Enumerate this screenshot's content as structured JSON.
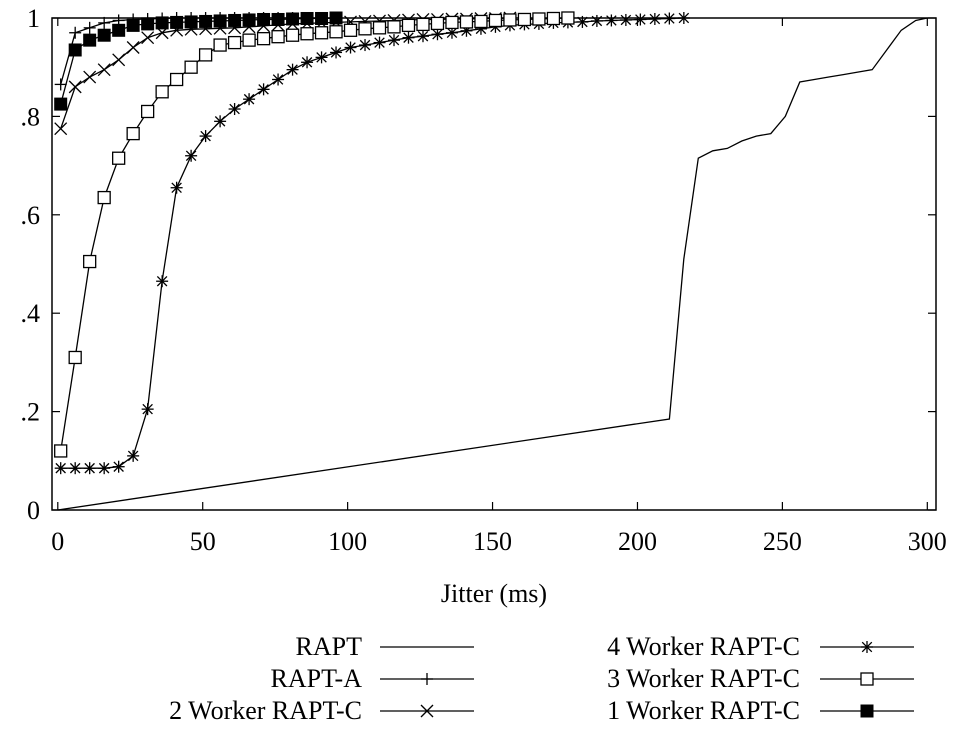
{
  "chart_data": {
    "type": "line",
    "title": "",
    "xlabel": "Jitter (ms)",
    "ylabel": "",
    "xlim": [
      -2,
      303
    ],
    "ylim": [
      0,
      1
    ],
    "grid": false,
    "legend_position": "bottom",
    "x_ticks": [
      0,
      50,
      100,
      150,
      200,
      250,
      300
    ],
    "y_ticks": [
      0,
      0.2,
      0.4,
      0.6,
      0.8,
      1
    ],
    "y_tick_labels": [
      "0",
      ".2",
      ".4",
      ".6",
      ".8",
      "1"
    ],
    "series": [
      {
        "name": "RAPT",
        "marker": "none",
        "x": [
          0,
          211,
          216,
          221,
          226,
          231,
          236,
          241,
          246,
          251,
          256,
          261,
          266,
          271,
          276,
          281,
          286,
          291,
          296,
          300
        ],
        "y": [
          0,
          0.185,
          0.51,
          0.715,
          0.73,
          0.735,
          0.75,
          0.76,
          0.765,
          0.8,
          0.87,
          0.875,
          0.88,
          0.885,
          0.89,
          0.895,
          0.935,
          0.975,
          0.995,
          1.0
        ]
      },
      {
        "name": "RAPT-A",
        "marker": "plus",
        "x": [
          1,
          6,
          11,
          16,
          21,
          26,
          31,
          36,
          41,
          46,
          51,
          56,
          61,
          66,
          71,
          76,
          81,
          86,
          91,
          96
        ],
        "y": [
          0.865,
          0.97,
          0.98,
          0.99,
          0.995,
          0.997,
          0.998,
          0.999,
          1,
          1,
          1,
          1,
          1,
          1,
          1,
          1,
          1,
          1,
          1,
          1
        ]
      },
      {
        "name": "2 Worker RAPT-C",
        "marker": "x",
        "x": [
          1,
          6,
          11,
          16,
          21,
          26,
          31,
          36,
          41,
          46,
          51,
          56,
          61,
          66,
          71,
          76,
          81,
          86,
          91,
          96,
          101,
          106,
          111,
          116,
          121,
          126,
          131,
          136,
          141,
          146,
          151,
          156
        ],
        "y": [
          0.775,
          0.86,
          0.88,
          0.895,
          0.915,
          0.94,
          0.96,
          0.97,
          0.975,
          0.977,
          0.978,
          0.979,
          0.98,
          0.982,
          0.984,
          0.986,
          0.988,
          0.989,
          0.99,
          0.991,
          0.992,
          0.993,
          0.994,
          0.995,
          0.996,
          0.997,
          0.997,
          0.998,
          0.998,
          0.999,
          0.999,
          1.0
        ]
      },
      {
        "name": "4 Worker RAPT-C",
        "marker": "star",
        "x": [
          1,
          6,
          11,
          16,
          21,
          26,
          31,
          36,
          41,
          46,
          51,
          56,
          61,
          66,
          71,
          76,
          81,
          86,
          91,
          96,
          101,
          106,
          111,
          116,
          121,
          126,
          131,
          136,
          141,
          146,
          151,
          156,
          161,
          166,
          171,
          176,
          181,
          186,
          191,
          196,
          201,
          206,
          211,
          216
        ],
        "y": [
          0.085,
          0.085,
          0.085,
          0.085,
          0.088,
          0.11,
          0.205,
          0.465,
          0.655,
          0.72,
          0.76,
          0.79,
          0.815,
          0.835,
          0.855,
          0.875,
          0.895,
          0.91,
          0.92,
          0.93,
          0.94,
          0.945,
          0.95,
          0.955,
          0.96,
          0.963,
          0.967,
          0.97,
          0.974,
          0.978,
          0.982,
          0.985,
          0.987,
          0.988,
          0.99,
          0.991,
          0.992,
          0.994,
          0.995,
          0.996,
          0.997,
          0.998,
          0.999,
          1.0
        ]
      },
      {
        "name": "3 Worker RAPT-C",
        "marker": "square-open",
        "x": [
          1,
          6,
          11,
          16,
          21,
          26,
          31,
          36,
          41,
          46,
          51,
          56,
          61,
          66,
          71,
          76,
          81,
          86,
          91,
          96,
          101,
          106,
          111,
          116,
          121,
          126,
          131,
          136,
          141,
          146,
          151,
          156,
          161,
          166,
          171,
          176
        ],
        "y": [
          0.12,
          0.31,
          0.505,
          0.635,
          0.715,
          0.765,
          0.81,
          0.85,
          0.875,
          0.9,
          0.925,
          0.945,
          0.95,
          0.955,
          0.958,
          0.962,
          0.965,
          0.968,
          0.97,
          0.972,
          0.975,
          0.978,
          0.98,
          0.982,
          0.985,
          0.987,
          0.989,
          0.991,
          0.992,
          0.993,
          0.995,
          0.996,
          0.997,
          0.998,
          0.999,
          1.0
        ]
      },
      {
        "name": "1 Worker RAPT-C",
        "marker": "square-filled",
        "x": [
          1,
          6,
          11,
          16,
          21,
          26,
          31,
          36,
          41,
          46,
          51,
          56,
          61,
          66,
          71,
          76,
          81,
          86,
          91,
          96
        ],
        "y": [
          0.825,
          0.935,
          0.955,
          0.965,
          0.975,
          0.985,
          0.988,
          0.99,
          0.991,
          0.992,
          0.993,
          0.994,
          0.995,
          0.996,
          0.997,
          0.997,
          0.998,
          0.999,
          0.999,
          1.0
        ]
      }
    ]
  }
}
